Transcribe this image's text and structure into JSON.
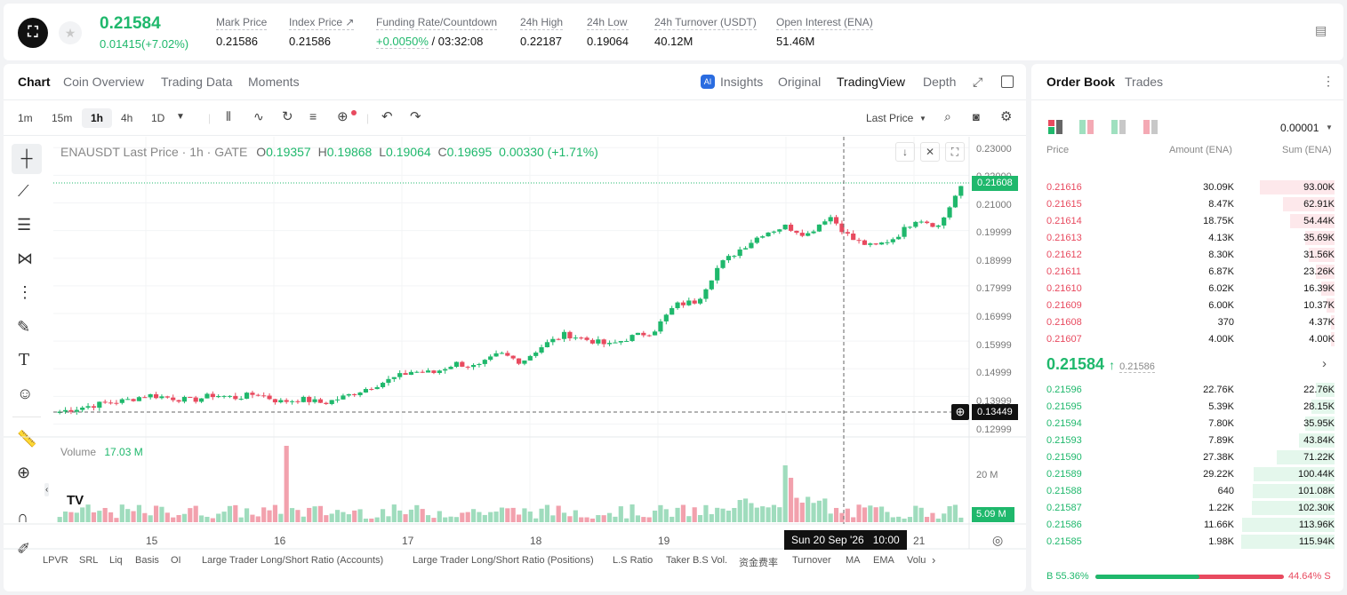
{
  "ticker": {
    "last_price": "0.21584",
    "change": "0.01415(+7.02%)",
    "stats": [
      {
        "label": "Mark Price",
        "value": "0.21586"
      },
      {
        "label": "Index Price ↗",
        "value": "0.21586"
      },
      {
        "label": "Funding Rate/Countdown",
        "rate": "+0.0050%",
        "countdown": "/ 03:32:08"
      },
      {
        "label": "24h High",
        "value": "0.22187"
      },
      {
        "label": "24h Low",
        "value": "0.19064"
      },
      {
        "label": "24h Turnover (USDT)",
        "value": "40.12M"
      },
      {
        "label": "Open Interest (ENA)",
        "value": "51.46M"
      }
    ]
  },
  "chart_tabs": [
    "Chart",
    "Coin Overview",
    "Trading Data",
    "Moments"
  ],
  "view_tabs": {
    "insights": "Insights",
    "original": "Original",
    "tradingview": "TradingView",
    "depth": "Depth"
  },
  "intervals": [
    "1m",
    "15m",
    "1h",
    "4h",
    "1D"
  ],
  "price_type": "Last Price",
  "legend": {
    "symbol": "ENAUSDT Last Price · 1h · GATE",
    "o": "0.19357",
    "h": "0.19868",
    "l": "0.19064",
    "c": "0.19695",
    "chg": "0.00330 (+1.71%)"
  },
  "volume": {
    "label": "Volume",
    "value": "17.03 M",
    "axis_label": "20 M",
    "current": "5.09 M"
  },
  "crosshair": {
    "date": "Sun 20 Sep '26",
    "time": "10:00",
    "price": "0.13449"
  },
  "current_price_tag": "0.21608",
  "y_ticks": [
    "0.23000",
    "0.22000",
    "0.21000",
    "0.19999",
    "0.18999",
    "0.17999",
    "0.16999",
    "0.15999",
    "0.14999",
    "0.13999",
    "0.12999"
  ],
  "x_ticks": [
    "15",
    "16",
    "17",
    "18",
    "19",
    "21"
  ],
  "indicators": [
    "LPVR",
    "SRL",
    "Liq",
    "Basis",
    "OI",
    "Large Trader Long/Short Ratio (Accounts)",
    "Large Trader Long/Short Ratio (Positions)",
    "L.S Ratio",
    "Taker B.S Vol.",
    "资金费率",
    "Turnover",
    "MA",
    "EMA",
    "Volu"
  ],
  "chart_data": {
    "type": "candlestick",
    "title": "ENAUSDT Last Price · 1h · GATE",
    "ylim": [
      0.125,
      0.232
    ],
    "y_ticks": [
      0.23,
      0.22,
      0.21,
      0.19999,
      0.18999,
      0.17999,
      0.16999,
      0.15999,
      0.14999,
      0.13999,
      0.12999
    ],
    "x_ticks": [
      "15",
      "16",
      "17",
      "18",
      "19",
      "21"
    ],
    "close_path_keypoints": [
      0.1345,
      0.136,
      0.1375,
      0.1385,
      0.1405,
      0.1395,
      0.1385,
      0.1405,
      0.1395,
      0.141,
      0.138,
      0.139,
      0.1375,
      0.14,
      0.143,
      0.146,
      0.149,
      0.1485,
      0.152,
      0.1505,
      0.1555,
      0.1525,
      0.1585,
      0.1625,
      0.1605,
      0.1585,
      0.1615,
      0.1635,
      0.173,
      0.1745,
      0.1875,
      0.1935,
      0.199,
      0.2015,
      0.1985,
      0.2055,
      0.197,
      0.194,
      0.1975,
      0.2045,
      0.2015,
      0.2163
    ]
  },
  "orderbook": {
    "tabs": [
      "Order Book",
      "Trades"
    ],
    "precision": "0.00001",
    "headers": [
      "Price",
      "Amount (ENA)",
      "Sum (ENA)"
    ],
    "asks": [
      {
        "price": "0.21616",
        "amount": "30.09K",
        "sum": "93.00K",
        "depth": 0.8
      },
      {
        "price": "0.21615",
        "amount": "8.47K",
        "sum": "62.91K",
        "depth": 0.55
      },
      {
        "price": "0.21614",
        "amount": "18.75K",
        "sum": "54.44K",
        "depth": 0.48
      },
      {
        "price": "0.21613",
        "amount": "4.13K",
        "sum": "35.69K",
        "depth": 0.31
      },
      {
        "price": "0.21612",
        "amount": "8.30K",
        "sum": "31.56K",
        "depth": 0.28
      },
      {
        "price": "0.21611",
        "amount": "6.87K",
        "sum": "23.26K",
        "depth": 0.2
      },
      {
        "price": "0.21610",
        "amount": "6.02K",
        "sum": "16.39K",
        "depth": 0.14
      },
      {
        "price": "0.21609",
        "amount": "6.00K",
        "sum": "10.37K",
        "depth": 0.09
      },
      {
        "price": "0.21608",
        "amount": "370",
        "sum": "4.37K",
        "depth": 0.04
      },
      {
        "price": "0.21607",
        "amount": "4.00K",
        "sum": "4.00K",
        "depth": 0.035
      }
    ],
    "mid_price": "0.21584",
    "mid_ref": "0.21586",
    "bids": [
      {
        "price": "0.21596",
        "amount": "22.76K",
        "sum": "22.76K",
        "depth": 0.2
      },
      {
        "price": "0.21595",
        "amount": "5.39K",
        "sum": "28.15K",
        "depth": 0.25
      },
      {
        "price": "0.21594",
        "amount": "7.80K",
        "sum": "35.95K",
        "depth": 0.31
      },
      {
        "price": "0.21593",
        "amount": "7.89K",
        "sum": "43.84K",
        "depth": 0.38
      },
      {
        "price": "0.21590",
        "amount": "27.38K",
        "sum": "71.22K",
        "depth": 0.62
      },
      {
        "price": "0.21589",
        "amount": "29.22K",
        "sum": "100.44K",
        "depth": 0.87
      },
      {
        "price": "0.21588",
        "amount": "640",
        "sum": "101.08K",
        "depth": 0.88
      },
      {
        "price": "0.21587",
        "amount": "1.22K",
        "sum": "102.30K",
        "depth": 0.89
      },
      {
        "price": "0.21586",
        "amount": "11.66K",
        "sum": "113.96K",
        "depth": 0.99
      },
      {
        "price": "0.21585",
        "amount": "1.98K",
        "sum": "115.94K",
        "depth": 1.0
      }
    ],
    "buy_ratio": "B 55.36%",
    "sell_ratio": "44.64% S",
    "buy_fraction": 0.5536
  },
  "colors": {
    "up": "#1fb86c",
    "down": "#e84a5f"
  }
}
